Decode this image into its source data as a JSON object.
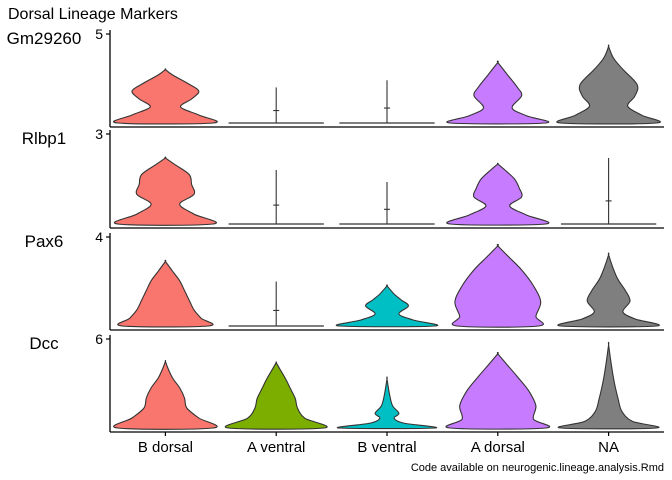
{
  "chart_data": {
    "type": "violin",
    "title": "Dorsal Lineage Markers",
    "caption": "Code available on neurogenic.lineage.analysis.Rmd",
    "categories": [
      "B dorsal",
      "A ventral",
      "B ventral",
      "A dorsal",
      "NA"
    ],
    "colors": {
      "B dorsal": "#F8766D",
      "A ventral": "#7CAE00",
      "B ventral": "#00BFC4",
      "A dorsal": "#C77CFF",
      "NA": "#7F7F7F"
    },
    "panels": [
      {
        "gene": "Gm29260",
        "ytick": "5",
        "ymax": 5,
        "violins": [
          {
            "group": "B dorsal",
            "max": 3.0,
            "filled": true,
            "profile": [
              [
                0,
                1.0
              ],
              [
                0.15,
                0.7
              ],
              [
                0.3,
                0.32
              ],
              [
                0.45,
                0.55
              ],
              [
                0.6,
                0.7
              ],
              [
                0.75,
                0.45
              ],
              [
                0.9,
                0.15
              ],
              [
                1,
                0.0
              ]
            ]
          },
          {
            "group": "A ventral",
            "max": 2.0,
            "filled": false,
            "profile": [
              [
                0,
                1.0
              ],
              [
                0.03,
                0.02
              ],
              [
                1,
                0.0
              ]
            ]
          },
          {
            "group": "B ventral",
            "max": 2.4,
            "filled": false,
            "profile": [
              [
                0,
                1.0
              ],
              [
                0.03,
                0.02
              ],
              [
                1,
                0.0
              ]
            ]
          },
          {
            "group": "A dorsal",
            "max": 3.4,
            "filled": true,
            "profile": [
              [
                0,
                1.0
              ],
              [
                0.12,
                0.6
              ],
              [
                0.25,
                0.3
              ],
              [
                0.45,
                0.5
              ],
              [
                0.6,
                0.4
              ],
              [
                0.8,
                0.2
              ],
              [
                1,
                0.0
              ]
            ]
          },
          {
            "group": "NA",
            "max": 4.3,
            "filled": true,
            "profile": [
              [
                0,
                1.0
              ],
              [
                0.1,
                0.7
              ],
              [
                0.22,
                0.4
              ],
              [
                0.35,
                0.55
              ],
              [
                0.5,
                0.6
              ],
              [
                0.7,
                0.3
              ],
              [
                0.85,
                0.1
              ],
              [
                1,
                0.0
              ]
            ]
          }
        ]
      },
      {
        "gene": "Rlbp1",
        "ytick": "3",
        "ymax": 3,
        "violins": [
          {
            "group": "B dorsal",
            "max": 2.2,
            "filled": true,
            "profile": [
              [
                0,
                1.0
              ],
              [
                0.15,
                0.6
              ],
              [
                0.3,
                0.3
              ],
              [
                0.45,
                0.6
              ],
              [
                0.6,
                0.55
              ],
              [
                0.75,
                0.5
              ],
              [
                0.9,
                0.2
              ],
              [
                1,
                0.0
              ]
            ]
          },
          {
            "group": "A ventral",
            "max": 1.8,
            "filled": false,
            "profile": [
              [
                0,
                1.0
              ],
              [
                0.03,
                0.02
              ],
              [
                1,
                0.0
              ]
            ]
          },
          {
            "group": "B ventral",
            "max": 1.4,
            "filled": false,
            "profile": [
              [
                0,
                1.0
              ],
              [
                0.03,
                0.02
              ],
              [
                1,
                0.0
              ]
            ]
          },
          {
            "group": "A dorsal",
            "max": 2.0,
            "filled": true,
            "profile": [
              [
                0,
                1.0
              ],
              [
                0.15,
                0.6
              ],
              [
                0.3,
                0.25
              ],
              [
                0.45,
                0.5
              ],
              [
                0.6,
                0.45
              ],
              [
                0.75,
                0.35
              ],
              [
                0.9,
                0.15
              ],
              [
                1,
                0.0
              ]
            ]
          },
          {
            "group": "NA",
            "max": 2.2,
            "filled": false,
            "profile": [
              [
                0,
                1.0
              ],
              [
                0.03,
                0.02
              ],
              [
                1,
                0.0
              ]
            ]
          }
        ]
      },
      {
        "gene": "Pax6",
        "ytick": "4",
        "ymax": 4,
        "violins": [
          {
            "group": "B dorsal",
            "max": 2.9,
            "filled": true,
            "profile": [
              [
                0,
                0.9
              ],
              [
                0.12,
                0.75
              ],
              [
                0.25,
                0.6
              ],
              [
                0.4,
                0.5
              ],
              [
                0.55,
                0.4
              ],
              [
                0.7,
                0.3
              ],
              [
                0.85,
                0.15
              ],
              [
                1,
                0.0
              ]
            ]
          },
          {
            "group": "A ventral",
            "max": 2.0,
            "filled": false,
            "profile": [
              [
                0,
                1.0
              ],
              [
                0.03,
                0.02
              ],
              [
                1,
                0.0
              ]
            ]
          },
          {
            "group": "B ventral",
            "max": 1.8,
            "filled": true,
            "profile": [
              [
                0,
                1.0
              ],
              [
                0.15,
                0.55
              ],
              [
                0.3,
                0.25
              ],
              [
                0.5,
                0.45
              ],
              [
                0.65,
                0.3
              ],
              [
                0.8,
                0.15
              ],
              [
                1,
                0.0
              ]
            ]
          },
          {
            "group": "A dorsal",
            "max": 3.6,
            "filled": true,
            "profile": [
              [
                0,
                0.85
              ],
              [
                0.12,
                0.8
              ],
              [
                0.3,
                0.9
              ],
              [
                0.5,
                0.75
              ],
              [
                0.7,
                0.5
              ],
              [
                0.85,
                0.25
              ],
              [
                1,
                0.0
              ]
            ]
          },
          {
            "group": "NA",
            "max": 3.2,
            "filled": true,
            "profile": [
              [
                0,
                1.0
              ],
              [
                0.1,
                0.55
              ],
              [
                0.2,
                0.3
              ],
              [
                0.35,
                0.45
              ],
              [
                0.5,
                0.35
              ],
              [
                0.65,
                0.2
              ],
              [
                0.8,
                0.1
              ],
              [
                1,
                0.0
              ]
            ]
          }
        ]
      },
      {
        "gene": "Dcc",
        "ytick": "6",
        "ymax": 6,
        "violins": [
          {
            "group": "B dorsal",
            "max": 4.5,
            "filled": true,
            "profile": [
              [
                0,
                1.0
              ],
              [
                0.15,
                0.7
              ],
              [
                0.3,
                0.45
              ],
              [
                0.45,
                0.4
              ],
              [
                0.6,
                0.3
              ],
              [
                0.75,
                0.15
              ],
              [
                0.9,
                0.05
              ],
              [
                1,
                0.0
              ]
            ]
          },
          {
            "group": "A ventral",
            "max": 4.4,
            "filled": true,
            "profile": [
              [
                0,
                1.0
              ],
              [
                0.15,
                0.6
              ],
              [
                0.3,
                0.45
              ],
              [
                0.45,
                0.4
              ],
              [
                0.6,
                0.3
              ],
              [
                0.75,
                0.2
              ],
              [
                0.9,
                0.08
              ],
              [
                1,
                0.0
              ]
            ]
          },
          {
            "group": "B ventral",
            "max": 3.3,
            "filled": true,
            "profile": [
              [
                0,
                1.0
              ],
              [
                0.1,
                0.35
              ],
              [
                0.2,
                0.15
              ],
              [
                0.3,
                0.25
              ],
              [
                0.45,
                0.12
              ],
              [
                0.65,
                0.06
              ],
              [
                1,
                0.0
              ]
            ]
          },
          {
            "group": "A dorsal",
            "max": 5.0,
            "filled": true,
            "profile": [
              [
                0,
                1.0
              ],
              [
                0.12,
                0.75
              ],
              [
                0.3,
                0.8
              ],
              [
                0.5,
                0.65
              ],
              [
                0.7,
                0.4
              ],
              [
                0.85,
                0.2
              ],
              [
                1,
                0.0
              ]
            ]
          },
          {
            "group": "NA",
            "max": 5.6,
            "filled": true,
            "profile": [
              [
                0,
                1.0
              ],
              [
                0.08,
                0.5
              ],
              [
                0.2,
                0.28
              ],
              [
                0.35,
                0.2
              ],
              [
                0.55,
                0.12
              ],
              [
                0.75,
                0.06
              ],
              [
                1,
                0.0
              ]
            ]
          }
        ]
      }
    ]
  }
}
